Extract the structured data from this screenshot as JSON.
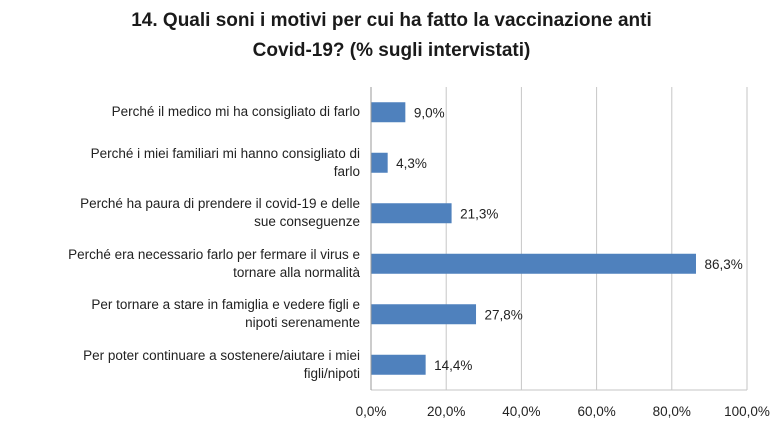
{
  "title": {
    "line1": "14. Quali soni i motivi per cui ha fatto la vaccinazione anti",
    "line2": "Covid-19? (% sugli intervistati)"
  },
  "chart_data": {
    "type": "bar",
    "orientation": "horizontal",
    "title": "14. Quali soni i motivi per cui ha fatto la vaccinazione anti Covid-19? (% sugli intervistati)",
    "categories": [
      "Perché il medico mi ha consigliato di farlo",
      "Perché i miei familiari mi hanno consigliato di farlo",
      "Perché ha paura di prendere il covid-19 e delle sue conseguenze",
      "Perché era necessario farlo per fermare il virus e tornare alla normalità",
      "Per tornare a stare in famiglia e vedere figli e nipoti serenamente",
      "Per poter continuare a sostenere/aiutare i miei figli/nipoti"
    ],
    "category_lines": [
      [
        "Perché il medico mi ha consigliato di farlo"
      ],
      [
        "Perché i miei familiari mi hanno consigliato di",
        "farlo"
      ],
      [
        "Perché ha paura di prendere il covid-19 e delle",
        "sue conseguenze"
      ],
      [
        "Perché era necessario farlo per fermare il virus e",
        "tornare alla normalità"
      ],
      [
        "Per tornare a stare in famiglia e vedere figli e",
        "nipoti serenamente"
      ],
      [
        "Per poter continuare a sostenere/aiutare i miei",
        "figli/nipoti"
      ]
    ],
    "values": [
      9.0,
      4.3,
      21.3,
      86.3,
      27.8,
      14.4
    ],
    "value_labels": [
      "9,0%",
      "4,3%",
      "21,3%",
      "86,3%",
      "27,8%",
      "14,4%"
    ],
    "xlim": [
      0,
      100
    ],
    "ticks": [
      0,
      20,
      40,
      60,
      80,
      100
    ],
    "tick_labels": [
      "0,0%",
      "20,0%",
      "40,0%",
      "60,0%",
      "80,0%",
      "100,0%"
    ],
    "grid": true,
    "bar_color": "#4f81bd",
    "grid_color": "#c6c6c6",
    "legend": "none"
  }
}
